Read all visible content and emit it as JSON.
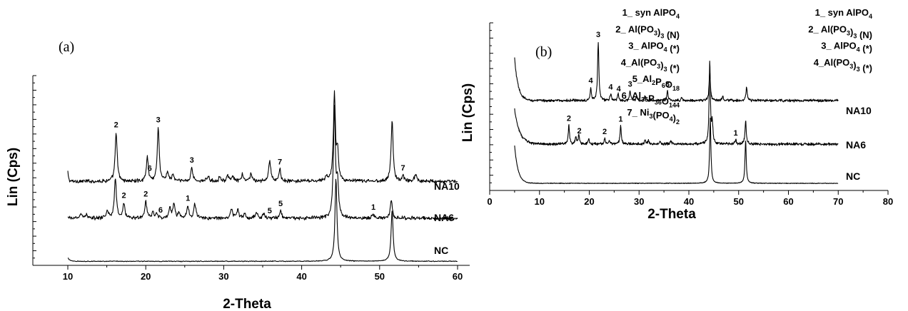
{
  "chart_data": [
    {
      "type": "line",
      "panel_label": "(a)",
      "xlabel": "2-Theta",
      "ylabel": "Lin (Cps)",
      "xlim": [
        5,
        65
      ],
      "x_ticks": [
        10,
        20,
        30,
        40,
        50,
        60
      ],
      "legend_placement": "top-right",
      "legend": [
        {
          "id": "1",
          "parts": [
            [
              "1_ syn AlPO",
              ""
            ],
            [
              "4",
              "sub"
            ]
          ]
        },
        {
          "id": "2",
          "parts": [
            [
              "2_ Al(PO",
              ""
            ],
            [
              "3",
              "sub"
            ],
            [
              ")",
              ""
            ],
            [
              "3",
              "sub"
            ],
            [
              " (N)",
              ""
            ]
          ]
        },
        {
          "id": "3",
          "parts": [
            [
              "3_ AlPO",
              ""
            ],
            [
              "4",
              "sub"
            ],
            [
              " (*)",
              ""
            ]
          ]
        },
        {
          "id": "4",
          "parts": [
            [
              "4_Al(PO",
              ""
            ],
            [
              "3",
              "sub"
            ],
            [
              ")",
              ""
            ],
            [
              "3",
              "sub"
            ],
            [
              " (*)",
              ""
            ]
          ]
        },
        {
          "id": "5",
          "parts": [
            [
              "5_Al",
              ""
            ],
            [
              "2",
              "sub"
            ],
            [
              "P",
              ""
            ],
            [
              "6",
              "sub"
            ],
            [
              "O",
              ""
            ],
            [
              "18",
              "sub"
            ]
          ]
        },
        {
          "id": "6",
          "parts": [
            [
              "6_Al",
              ""
            ],
            [
              "36",
              "sub"
            ],
            [
              "P",
              ""
            ],
            [
              "36",
              "sub"
            ],
            [
              "O",
              ""
            ],
            [
              "144",
              "sub"
            ]
          ]
        },
        {
          "id": "7",
          "parts": [
            [
              "7_ Ni",
              ""
            ],
            [
              "3",
              "sub"
            ],
            [
              "(PO",
              ""
            ],
            [
              "4",
              "sub"
            ],
            [
              ")",
              ""
            ],
            [
              "2",
              "sub"
            ]
          ]
        }
      ],
      "series": [
        {
          "name": "NA10",
          "x_start": 10,
          "x_end": 60,
          "baseline": 0.6,
          "start_level": 1.0,
          "decay": 0.1,
          "noise": 0.28,
          "peaks": [
            [
              16.2,
              5.3
            ],
            [
              20.2,
              2.6
            ],
            [
              21.6,
              5.8
            ],
            [
              22.8,
              1.0
            ],
            [
              23.5,
              0.7
            ],
            [
              25.9,
              1.5
            ],
            [
              28.0,
              0.6
            ],
            [
              29.5,
              0.5
            ],
            [
              30.5,
              0.6
            ],
            [
              31.2,
              0.5
            ],
            [
              32.4,
              0.7
            ],
            [
              33.5,
              0.9
            ],
            [
              35.9,
              2.3
            ],
            [
              37.2,
              1.3
            ],
            [
              43.2,
              0.5
            ],
            [
              44.2,
              9.3
            ],
            [
              44.6,
              3.0
            ],
            [
              51.6,
              6.6
            ],
            [
              53.0,
              0.6
            ],
            [
              54.6,
              0.8
            ]
          ],
          "annotations": [
            [
              16.2,
              "2"
            ],
            [
              20.5,
              "6"
            ],
            [
              21.6,
              "3"
            ],
            [
              25.9,
              "3"
            ],
            [
              37.2,
              "7"
            ],
            [
              53.0,
              "7"
            ]
          ]
        },
        {
          "name": "NA6",
          "x_start": 10,
          "x_end": 60,
          "baseline": 0.0,
          "start_level": 0,
          "decay": 1,
          "noise": 0.28,
          "peaks": [
            [
              11.7,
              0.5
            ],
            [
              12.4,
              0.4
            ],
            [
              15.1,
              0.8
            ],
            [
              16.1,
              4.4
            ],
            [
              17.2,
              1.6
            ],
            [
              20.0,
              1.8
            ],
            [
              20.9,
              0.6
            ],
            [
              21.4,
              0.5
            ],
            [
              23.1,
              1.1
            ],
            [
              23.6,
              1.6
            ],
            [
              24.3,
              0.6
            ],
            [
              25.4,
              1.3
            ],
            [
              26.3,
              1.6
            ],
            [
              31.0,
              1.1
            ],
            [
              31.8,
              0.9
            ],
            [
              32.7,
              0.5
            ],
            [
              34.2,
              0.6
            ],
            [
              35.1,
              0.5
            ],
            [
              37.3,
              0.8
            ],
            [
              44.2,
              11.8
            ],
            [
              44.6,
              3.5
            ],
            [
              49.2,
              0.4
            ],
            [
              51.5,
              2.0
            ]
          ],
          "annotations": [
            [
              17.2,
              "2"
            ],
            [
              20.0,
              "2"
            ],
            [
              21.9,
              "6"
            ],
            [
              25.4,
              "1"
            ],
            [
              35.9,
              "5"
            ],
            [
              37.3,
              "5"
            ],
            [
              49.2,
              "1"
            ]
          ]
        },
        {
          "name": "NC",
          "x_start": 10,
          "x_end": 60,
          "baseline": -1.1,
          "start_level": 0.35,
          "decay": 0.3,
          "noise": 0.06,
          "peaks": [
            [
              44.4,
              9.0
            ],
            [
              51.6,
              5.5
            ]
          ],
          "annotations": []
        }
      ]
    },
    {
      "type": "line",
      "panel_label": "(b)",
      "xlabel": "2-Theta",
      "ylabel": "Lin (Cps)",
      "xlim": [
        0,
        80
      ],
      "x_ticks": [
        0,
        10,
        20,
        30,
        40,
        50,
        60,
        70,
        80
      ],
      "legend_placement": "top-right",
      "legend": [
        {
          "id": "1",
          "parts": [
            [
              "1_ syn AlPO",
              ""
            ],
            [
              "4",
              "sub"
            ]
          ]
        },
        {
          "id": "2",
          "parts": [
            [
              "2_ Al(PO",
              ""
            ],
            [
              "3",
              "sub"
            ],
            [
              ")",
              ""
            ],
            [
              "3",
              "sub"
            ],
            [
              " (N)",
              ""
            ]
          ]
        },
        {
          "id": "3",
          "parts": [
            [
              "3_ AlPO",
              ""
            ],
            [
              "4",
              "sub"
            ],
            [
              " (*)",
              ""
            ]
          ]
        },
        {
          "id": "4",
          "parts": [
            [
              "4_Al(PO",
              ""
            ],
            [
              "3",
              "sub"
            ],
            [
              ")",
              ""
            ],
            [
              "3",
              "sub"
            ],
            [
              " (*)",
              ""
            ]
          ]
        }
      ],
      "series": [
        {
          "name": "NA10",
          "x_start": 5,
          "x_end": 70,
          "baseline": 1.0,
          "start_level": 5.4,
          "decay": 0.7,
          "noise": 0.24,
          "peaks": [
            [
              20.3,
              1.6
            ],
            [
              21.8,
              7.5
            ],
            [
              24.3,
              0.8
            ],
            [
              25.8,
              0.9
            ],
            [
              28.2,
              1.2
            ],
            [
              29.5,
              0.5
            ],
            [
              31.2,
              0.6
            ],
            [
              35.7,
              1.2
            ],
            [
              38.6,
              0.4
            ],
            [
              44.2,
              3.8
            ],
            [
              46.8,
              0.5
            ],
            [
              51.6,
              1.7
            ]
          ],
          "annotations": [
            [
              20.3,
              "4"
            ],
            [
              21.8,
              "3"
            ],
            [
              24.3,
              "4"
            ],
            [
              25.9,
              "4"
            ],
            [
              28.2,
              "3"
            ],
            [
              35.7,
              "3"
            ]
          ]
        },
        {
          "name": "NA6",
          "x_start": 5,
          "x_end": 70,
          "baseline": 0.0,
          "start_level": 4.5,
          "decay": 1.0,
          "noise": 0.24,
          "peaks": [
            [
              15.9,
              2.4
            ],
            [
              17.3,
              0.9
            ],
            [
              17.9,
              1.1
            ],
            [
              19.9,
              0.7
            ],
            [
              23.1,
              0.7
            ],
            [
              24.0,
              0.5
            ],
            [
              26.3,
              2.3
            ],
            [
              31.2,
              0.5
            ],
            [
              31.9,
              0.4
            ],
            [
              34.2,
              0.4
            ],
            [
              36.4,
              0.4
            ],
            [
              44.2,
              10.5
            ],
            [
              44.7,
              2.5
            ],
            [
              49.4,
              0.5
            ],
            [
              51.4,
              3.0
            ]
          ],
          "annotations": [
            [
              15.9,
              "2"
            ],
            [
              18.0,
              "2"
            ],
            [
              23.1,
              "2"
            ],
            [
              26.3,
              "1"
            ],
            [
              49.4,
              "1"
            ]
          ]
        },
        {
          "name": "NC",
          "x_start": 5,
          "x_end": 70,
          "baseline": -1.0,
          "start_level": 4.8,
          "decay": 0.7,
          "noise": 0.06,
          "peaks": [
            [
              44.3,
              8.3
            ],
            [
              51.4,
              5.5
            ]
          ],
          "annotations": []
        }
      ]
    }
  ]
}
